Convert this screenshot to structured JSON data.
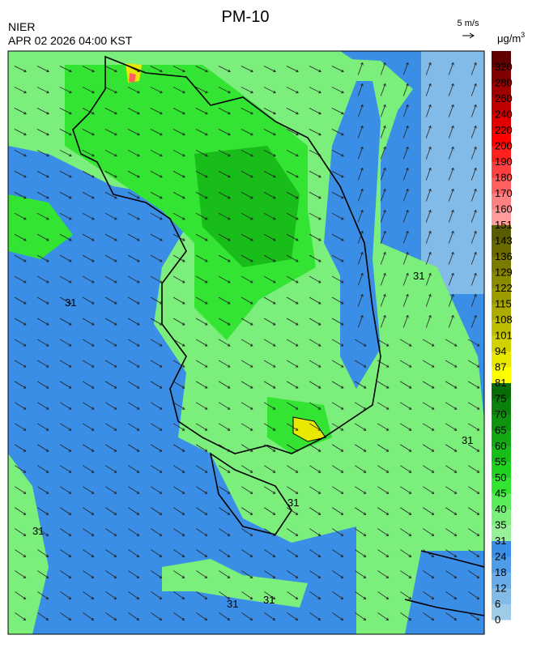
{
  "header": {
    "title": "PM-10",
    "agency": "NIER",
    "timestamp": "APR 02 2026 04:00 KST"
  },
  "wind_scale": {
    "label": "5 m/s"
  },
  "legend": {
    "unit": "μg/m",
    "unit_sup": "3",
    "levels": [
      {
        "label": "0",
        "color": "#9dcbe8"
      },
      {
        "label": "6",
        "color": "#82bbe8"
      },
      {
        "label": "12",
        "color": "#68abe9"
      },
      {
        "label": "18",
        "color": "#4f9de9"
      },
      {
        "label": "24",
        "color": "#3a8ee6"
      },
      {
        "label": "31",
        "color": "#98f098"
      },
      {
        "label": "35",
        "color": "#7cee7c"
      },
      {
        "label": "40",
        "color": "#5aec5a"
      },
      {
        "label": "45",
        "color": "#33e433"
      },
      {
        "label": "50",
        "color": "#1fd21f"
      },
      {
        "label": "55",
        "color": "#19bd19"
      },
      {
        "label": "60",
        "color": "#14a814"
      },
      {
        "label": "65",
        "color": "#109410"
      },
      {
        "label": "70",
        "color": "#0c800c"
      },
      {
        "label": "75",
        "color": "#086c08"
      },
      {
        "label": "81",
        "color": "#ffff00"
      },
      {
        "label": "87",
        "color": "#e8e800"
      },
      {
        "label": "94",
        "color": "#d2d200"
      },
      {
        "label": "101",
        "color": "#bebe00"
      },
      {
        "label": "108",
        "color": "#acac00"
      },
      {
        "label": "115",
        "color": "#9c9c00"
      },
      {
        "label": "122",
        "color": "#8b8b00"
      },
      {
        "label": "129",
        "color": "#7a7a00"
      },
      {
        "label": "136",
        "color": "#6a6a00"
      },
      {
        "label": "143",
        "color": "#5a5a00"
      },
      {
        "label": "151",
        "color": "#ff9c9c"
      },
      {
        "label": "160",
        "color": "#ff8080"
      },
      {
        "label": "170",
        "color": "#ff6060"
      },
      {
        "label": "180",
        "color": "#ff4040"
      },
      {
        "label": "190",
        "color": "#ff2020"
      },
      {
        "label": "200",
        "color": "#ff0000"
      },
      {
        "label": "220",
        "color": "#e00000"
      },
      {
        "label": "240",
        "color": "#c00000"
      },
      {
        "label": "260",
        "color": "#a00000"
      },
      {
        "label": "280",
        "color": "#800000"
      },
      {
        "label": "320",
        "color": "#600000"
      }
    ]
  },
  "map": {
    "contour_labels": [
      "31",
      "31",
      "31",
      "31",
      "31",
      "31",
      "31"
    ]
  }
}
